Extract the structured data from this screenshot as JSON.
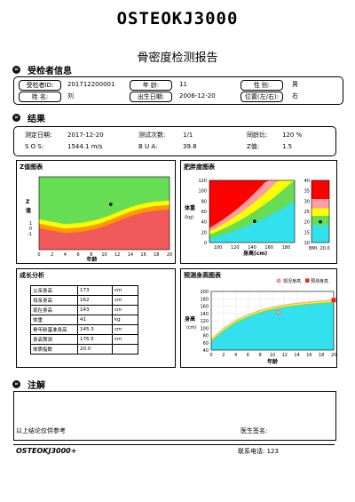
{
  "header": {
    "brand": "OSTEOKJ3000",
    "title": "骨密度检测报告"
  },
  "patient_section": {
    "heading": "受检者信息",
    "id_label": "受检者ID:",
    "id_value": "201712200001",
    "age_label": "年  龄:",
    "age_value": "11",
    "sex_label": "性  别:",
    "sex_value": "男",
    "name_label": "姓  名:",
    "name_value": "刘",
    "birth_label": "出生日期:",
    "birth_value": "2006-12-20",
    "pos_label": "位置(左/右):",
    "pos_value": "右"
  },
  "result_section": {
    "heading": "结果",
    "date_label": "测定日期:",
    "date_value": "2017-12-20",
    "count_label": "测试次数:",
    "count_value": "1/1",
    "same_label": "同龄比:",
    "same_value": "120 %",
    "sos_label": "S O S:",
    "sos_value": "1544.1 m/s",
    "bua_label": "B U A:",
    "bua_value": "39.8",
    "z_label": "Z值:",
    "z_value": "1.5"
  },
  "zchart": {
    "title": "Z值图表",
    "ylabel": "Z 值",
    "yticks": [
      "1",
      "0",
      "-1"
    ],
    "xticks": [
      "0",
      "2",
      "4",
      "6",
      "8",
      "10",
      "12",
      "14",
      "16",
      "18",
      "20"
    ],
    "xlabel": "年龄",
    "point": {
      "age": 11,
      "z": 1.5
    }
  },
  "obesity": {
    "title": "肥胖度图表",
    "ylabel": "体重 (kg)",
    "yticks": [
      "120",
      "100",
      "80",
      "60",
      "40",
      "20",
      "0"
    ],
    "xticks": [
      "100",
      "120",
      "140",
      "160",
      "180"
    ],
    "xlabel": "身高(cm)",
    "point": {
      "height_cm": 143,
      "weight_kg": 41
    },
    "bmi_yticks": [
      "40",
      "35",
      "30",
      "25",
      "20",
      "15",
      "10"
    ],
    "bmi_label": "BMI: 20.0",
    "bmi_value": 20.0
  },
  "growth": {
    "title": "成长分析",
    "rows": [
      {
        "label": "父亲身高",
        "value": "173",
        "unit": "cm"
      },
      {
        "label": "母亲身高",
        "value": "162",
        "unit": "cm"
      },
      {
        "label": "现在身高",
        "value": "143",
        "unit": "cm"
      },
      {
        "label": "体重",
        "value": "41",
        "unit": "kg"
      },
      {
        "label": "骨年龄基准身高",
        "value": "145.3",
        "unit": "cm"
      },
      {
        "label": "身高预测",
        "value": "176.5",
        "unit": "cm"
      },
      {
        "label": "体质指数",
        "value": "20.0",
        "unit": ""
      }
    ]
  },
  "prediction": {
    "title": "预测身高图表",
    "legend_current": "现况身高",
    "legend_predicted": "预测身高",
    "ylabel": "身高 (cm)",
    "yticks": [
      "200",
      "180",
      "160",
      "140",
      "120",
      "100",
      "80",
      "60",
      "40"
    ],
    "xticks": [
      "0",
      "2",
      "4",
      "6",
      "8",
      "10",
      "12",
      "14",
      "16",
      "18",
      "20"
    ],
    "xlabel": "年龄",
    "current": {
      "age": 11,
      "height_cm": 143
    },
    "predicted": {
      "age": 20,
      "height_cm": 176.5
    }
  },
  "notes": {
    "heading": "注解",
    "disclaimer": "以上结论仅供参考",
    "doctor_label": "医生签名:"
  },
  "footer": {
    "brand": "OSTEOKJ3000+",
    "contact": "联系电话: 123"
  },
  "colors": {
    "red": "#f05a5a",
    "orange": "#ff9900",
    "yellow": "#ffff00",
    "green": "#66dd55",
    "cyan": "#33e0ee",
    "pink": "#ff9f9f"
  }
}
